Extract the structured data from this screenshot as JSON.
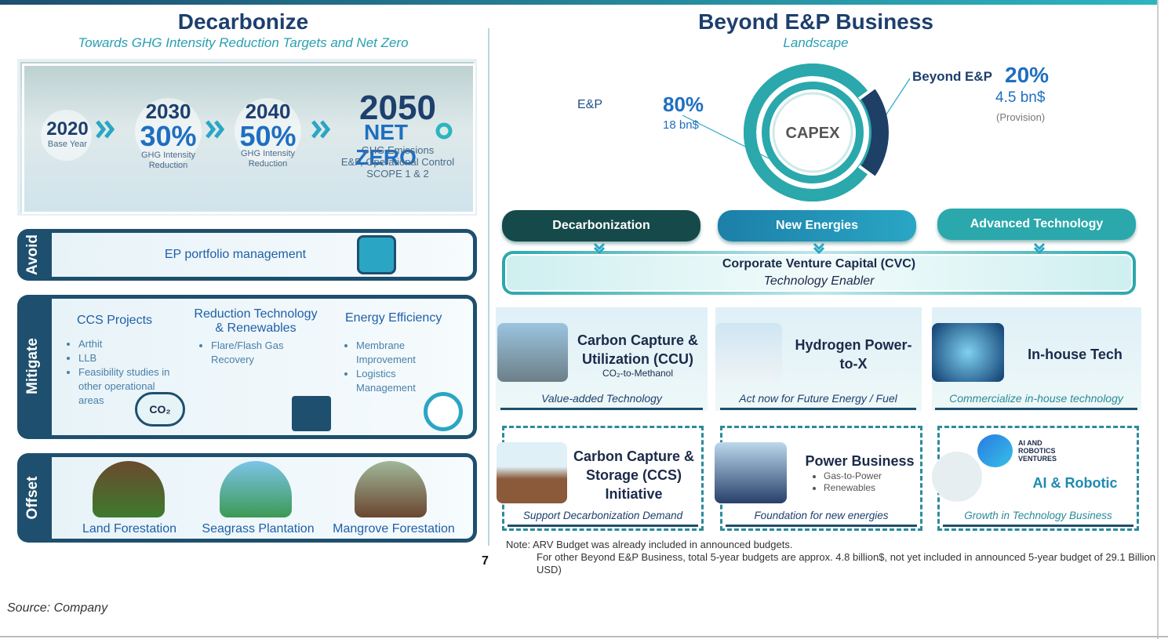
{
  "left": {
    "title": "Decarbonize",
    "subtitle": "Towards GHG Intensity Reduction Targets and Net Zero",
    "milestones": [
      {
        "year": "2020",
        "caption": "Base Year"
      },
      {
        "year": "2030",
        "target": "30%",
        "caption": "GHG Intensity Reduction"
      },
      {
        "year": "2040",
        "target": "50%",
        "caption": "GHG Intensity Reduction"
      },
      {
        "year": "2050",
        "target": "NET ZERO",
        "caption": [
          "GHG Emissions",
          "E&P, Operational Control",
          "SCOPE 1 & 2"
        ]
      }
    ],
    "avoid": {
      "label": "Avoid",
      "text": "EP portfolio management"
    },
    "mitigate": {
      "label": "Mitigate",
      "columns": [
        {
          "heading": "CCS Projects",
          "items": [
            "Arthit",
            "LLB",
            "Feasibility studies in other operational areas"
          ],
          "icon": "CO₂"
        },
        {
          "heading": "Reduction Technology & Renewables",
          "items": [
            "Flare/Flash Gas Recovery"
          ]
        },
        {
          "heading": "Energy Efficiency",
          "items": [
            "Membrane Improvement",
            "Logistics Management"
          ]
        }
      ]
    },
    "offset": {
      "label": "Offset",
      "items": [
        "Land Forestation",
        "Seagrass Plantation",
        "Mangrove Forestation"
      ]
    }
  },
  "right": {
    "title": "Beyond E&P Business",
    "subtitle": "Landscape",
    "capex": {
      "center": "CAPEX",
      "segments": [
        {
          "name": "E&P",
          "value": 80,
          "value_label": "80%",
          "amount": "18 bn$"
        },
        {
          "name": "Beyond E&P",
          "value": 20,
          "value_label": "20%",
          "amount": "4.5 bn$",
          "note": "(Provision)"
        }
      ]
    },
    "pillars": [
      "Decarbonization",
      "New Energies",
      "Advanced Technology"
    ],
    "cvc": {
      "title": "Corporate Venture Capital (CVC)",
      "subtitle": "Technology Enabler"
    },
    "cards": [
      {
        "title": "Carbon Capture & Utilization (CCU)",
        "detail": "CO₂-to-Methanol",
        "footer": "Value-added Technology"
      },
      {
        "title": "Hydrogen Power-to-X",
        "footer": "Act now for Future Energy / Fuel"
      },
      {
        "title": "In-house Tech",
        "footer": "Commercialize in-house technology"
      },
      {
        "title": "Carbon Capture & Storage (CCS) Initiative",
        "footer": "Support Decarbonization Demand"
      },
      {
        "title": "Power Business",
        "items": [
          "Gas-to-Power",
          "Renewables"
        ],
        "footer": "Foundation for new energies"
      },
      {
        "title": "AI & Robotic",
        "logo": "AI AND ROBOTICS VENTURES",
        "footer": "Growth in Technology Business"
      }
    ],
    "note": [
      "Note: ARV Budget was already included in announced budgets.",
      "For other Beyond E&P Business, total 5-year budgets are approx. 4.8 billion$, not yet included in announced 5-year budget of 29.1 Billion USD)"
    ]
  },
  "page_number": "7",
  "source": "Source: Company"
}
